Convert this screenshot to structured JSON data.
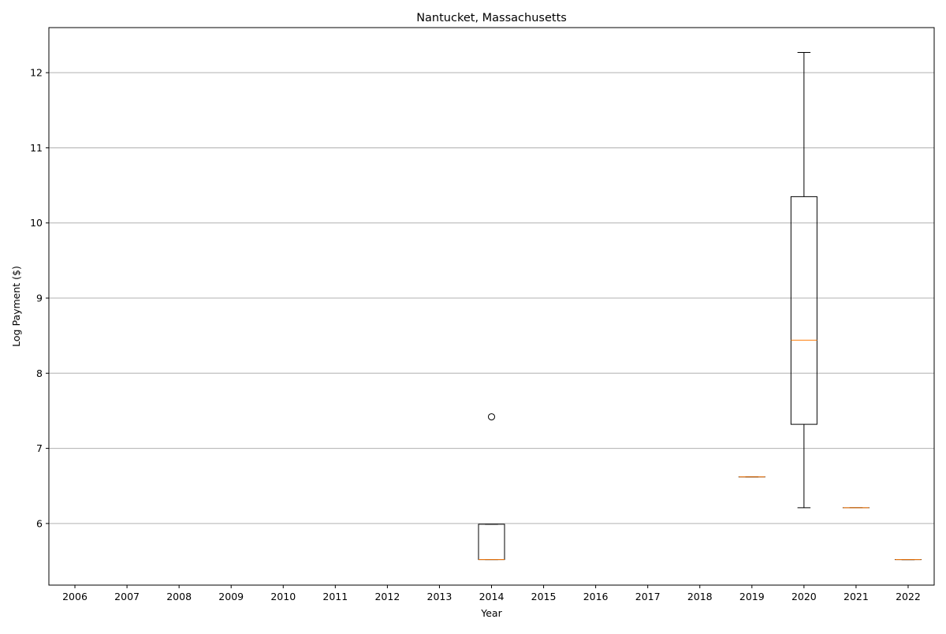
{
  "chart_data": {
    "type": "box",
    "title": "Nantucket, Massachusetts",
    "xlabel": "Year",
    "ylabel": "Log Payment ($)",
    "categories": [
      "2006",
      "2007",
      "2008",
      "2009",
      "2010",
      "2011",
      "2012",
      "2013",
      "2014",
      "2015",
      "2016",
      "2017",
      "2018",
      "2019",
      "2020",
      "2021",
      "2022"
    ],
    "ylim": [
      5.18,
      12.6
    ],
    "yticks": [
      6,
      7,
      8,
      9,
      10,
      11,
      12
    ],
    "grid": "y",
    "colors": {
      "box": "#000000",
      "median": "#ff7f0e",
      "grid": "#b0b0b0"
    },
    "boxes": [
      {
        "category": "2014",
        "whisker_low": 5.52,
        "q1": 5.52,
        "median": 5.52,
        "q3": 5.99,
        "whisker_high": 5.99,
        "outliers": [
          7.42
        ]
      },
      {
        "category": "2019",
        "whisker_low": 6.62,
        "q1": 6.62,
        "median": 6.62,
        "q3": 6.62,
        "whisker_high": 6.62,
        "outliers": []
      },
      {
        "category": "2020",
        "whisker_low": 6.21,
        "q1": 7.32,
        "median": 8.44,
        "q3": 10.35,
        "whisker_high": 12.27,
        "outliers": []
      },
      {
        "category": "2021",
        "whisker_low": 6.21,
        "q1": 6.21,
        "median": 6.21,
        "q3": 6.21,
        "whisker_high": 6.21,
        "outliers": []
      },
      {
        "category": "2022",
        "whisker_low": 5.52,
        "q1": 5.52,
        "median": 5.52,
        "q3": 5.52,
        "whisker_high": 5.52,
        "outliers": []
      }
    ]
  }
}
